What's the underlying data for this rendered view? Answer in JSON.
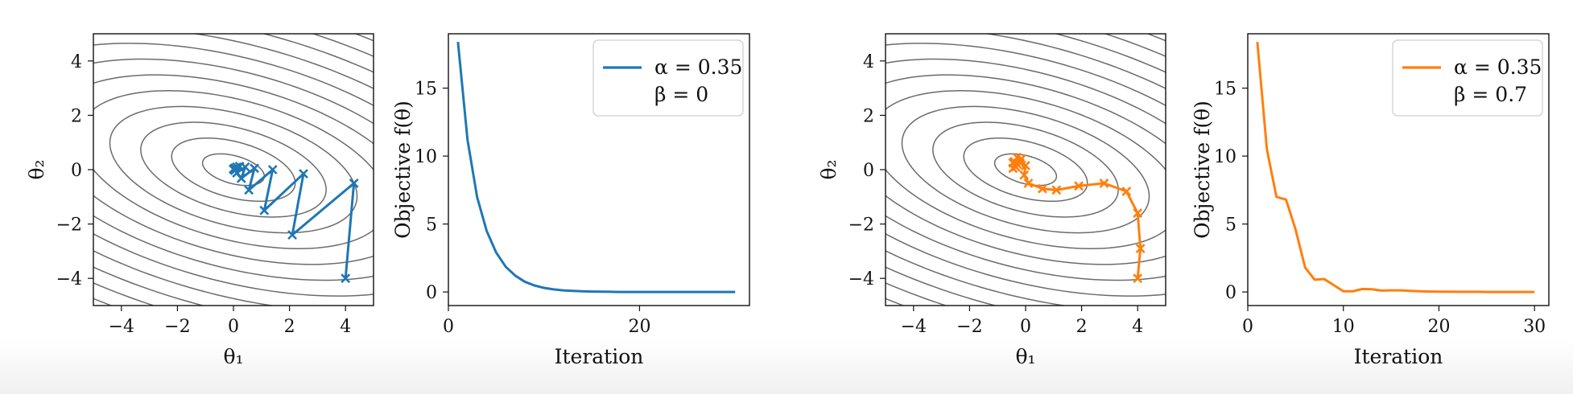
{
  "chart_data": [
    {
      "type": "contour",
      "panel": "contour-left",
      "xlabel": "θ₁",
      "ylabel": "θ₂",
      "xlim": [
        -5,
        5
      ],
      "ylim": [
        -5,
        5
      ],
      "xticks": [
        -4,
        -2,
        0,
        2,
        4
      ],
      "yticks": [
        -4,
        -2,
        0,
        2,
        4
      ],
      "x_tick_labels": [
        "−4",
        "−2",
        "0",
        "2",
        "4"
      ],
      "y_tick_labels": [
        "−4",
        "−2",
        "0",
        "2",
        "4"
      ],
      "contour_levels": [
        0.5,
        2,
        4.5,
        8,
        12.5,
        18,
        24.5,
        32,
        40.5,
        50,
        60.5,
        72,
        84.5
      ],
      "quadratic": {
        "a": 0.5,
        "b": 0.8,
        "c": 1.8
      },
      "path_color": "#1f77b4",
      "path": [
        [
          4.0,
          -4.0
        ],
        [
          4.3,
          -0.5
        ],
        [
          2.1,
          -2.4
        ],
        [
          2.5,
          -0.15
        ],
        [
          1.1,
          -1.5
        ],
        [
          1.4,
          0.0
        ],
        [
          0.55,
          -0.75
        ],
        [
          0.75,
          0.05
        ],
        [
          0.28,
          -0.32
        ],
        [
          0.42,
          0.1
        ],
        [
          0.12,
          -0.12
        ],
        [
          0.22,
          0.12
        ],
        [
          0.05,
          -0.03
        ],
        [
          0.12,
          0.1
        ],
        [
          0.0,
          0.02
        ],
        [
          0.05,
          0.06
        ],
        [
          0.0,
          0.02
        ]
      ]
    },
    {
      "type": "line",
      "panel": "objective-left",
      "xlabel": "Iteration",
      "ylabel": "Objective f(θ)",
      "xlim": [
        0,
        31.5
      ],
      "ylim": [
        -1,
        19
      ],
      "xticks": [
        0,
        20
      ],
      "yticks": [
        0,
        5,
        10,
        15
      ],
      "x_tick_labels": [
        "0",
        "20"
      ],
      "y_tick_labels": [
        "0",
        "5",
        "10",
        "15"
      ],
      "legend": {
        "alpha_text": "α = 0.35",
        "beta_text": "β = 0",
        "placement": "top-right"
      },
      "series": [
        {
          "name": "α = 0.35, β = 0",
          "color": "#1f77b4",
          "x": [
            1,
            2,
            3,
            4,
            5,
            6,
            7,
            8,
            9,
            10,
            11,
            12,
            13,
            14,
            15,
            16,
            17,
            18,
            19,
            20,
            21,
            22,
            23,
            24,
            25,
            26,
            27,
            28,
            29,
            30
          ],
          "y": [
            18.4,
            11.2,
            7.0,
            4.5,
            2.9,
            1.85,
            1.2,
            0.75,
            0.48,
            0.3,
            0.19,
            0.12,
            0.08,
            0.05,
            0.03,
            0.02,
            0.01,
            0.0,
            0.0,
            0.0,
            0.0,
            0.0,
            0.0,
            0.0,
            0.0,
            0.0,
            0.0,
            0.0,
            0.0,
            0.0
          ]
        }
      ]
    },
    {
      "type": "contour",
      "panel": "contour-right",
      "xlabel": "θ₁",
      "ylabel": "θ₂",
      "xlim": [
        -5,
        5
      ],
      "ylim": [
        -5,
        5
      ],
      "xticks": [
        -4,
        -2,
        0,
        2,
        4
      ],
      "yticks": [
        -4,
        -2,
        0,
        2,
        4
      ],
      "x_tick_labels": [
        "−4",
        "−2",
        "0",
        "2",
        "4"
      ],
      "y_tick_labels": [
        "−4",
        "−2",
        "0",
        "2",
        "4"
      ],
      "contour_levels": [
        0.5,
        2,
        4.5,
        8,
        12.5,
        18,
        24.5,
        32,
        40.5,
        50,
        60.5,
        72,
        84.5
      ],
      "quadratic": {
        "a": 0.5,
        "b": 0.8,
        "c": 1.8
      },
      "path_color": "#ff7f0e",
      "path": [
        [
          4.0,
          -4.0
        ],
        [
          4.1,
          -2.9
        ],
        [
          4.0,
          -1.6
        ],
        [
          3.6,
          -0.8
        ],
        [
          2.8,
          -0.5
        ],
        [
          1.9,
          -0.6
        ],
        [
          1.1,
          -0.75
        ],
        [
          0.6,
          -0.7
        ],
        [
          0.1,
          -0.5
        ],
        [
          -0.05,
          -0.2
        ],
        [
          0.0,
          0.15
        ],
        [
          -0.2,
          0.35
        ],
        [
          -0.4,
          0.3
        ],
        [
          -0.45,
          0.05
        ],
        [
          -0.3,
          0.2
        ],
        [
          -0.15,
          0.4
        ],
        [
          -0.3,
          0.45
        ],
        [
          -0.45,
          0.25
        ],
        [
          -0.35,
          0.1
        ],
        [
          -0.2,
          0.25
        ]
      ]
    },
    {
      "type": "line",
      "panel": "objective-right",
      "xlabel": "Iteration",
      "ylabel": "Objective f(θ)",
      "xlim": [
        0,
        31.5
      ],
      "ylim": [
        -1,
        19
      ],
      "xticks": [
        0,
        10,
        20,
        30
      ],
      "yticks": [
        0,
        5,
        10,
        15
      ],
      "x_tick_labels": [
        "0",
        "10",
        "20",
        "30"
      ],
      "y_tick_labels": [
        "0",
        "5",
        "10",
        "15"
      ],
      "legend": {
        "alpha_text": "α = 0.35",
        "beta_text": "β = 0.7",
        "placement": "top-right"
      },
      "series": [
        {
          "name": "α = 0.35, β = 0.7",
          "color": "#ff7f0e",
          "x": [
            1,
            2,
            3,
            4,
            5,
            6,
            7,
            8,
            9,
            10,
            11,
            12,
            13,
            14,
            15,
            16,
            17,
            18,
            19,
            20,
            21,
            22,
            23,
            24,
            25,
            26,
            27,
            28,
            29,
            30
          ],
          "y": [
            18.4,
            10.5,
            7.0,
            6.8,
            4.6,
            1.8,
            0.9,
            0.95,
            0.5,
            0.05,
            0.05,
            0.22,
            0.2,
            0.1,
            0.12,
            0.12,
            0.08,
            0.05,
            0.03,
            0.02,
            0.02,
            0.01,
            0.01,
            0.01,
            0.0,
            0.0,
            0.0,
            0.0,
            0.0,
            0.0
          ]
        }
      ]
    }
  ]
}
